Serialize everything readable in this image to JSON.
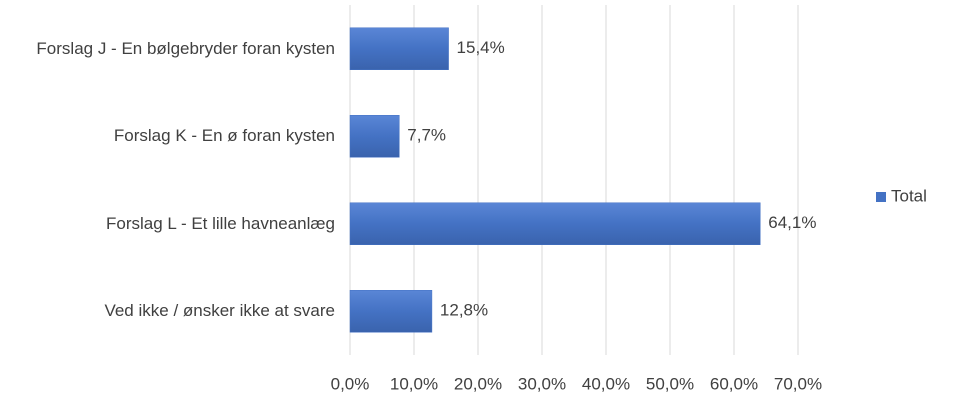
{
  "chart_data": {
    "type": "bar",
    "orientation": "horizontal",
    "categories": [
      "Forslag J - En bølgebryder foran kysten",
      "Forslag K - En ø foran kysten",
      "Forslag L - Et lille havneanlæg",
      "Ved ikke / ønsker ikke at svare"
    ],
    "series": [
      {
        "name": "Total",
        "color": "#4472c4",
        "values": [
          15.4,
          7.7,
          64.1,
          12.8
        ],
        "value_labels": [
          "15,4%",
          "7,7%",
          "64,1%",
          "12,8%"
        ]
      }
    ],
    "xlim": [
      0,
      70
    ],
    "xticks": [
      {
        "value": 0,
        "label": "0,0%"
      },
      {
        "value": 10,
        "label": "10,0%"
      },
      {
        "value": 20,
        "label": "20,0%"
      },
      {
        "value": 30,
        "label": "30,0%"
      },
      {
        "value": 40,
        "label": "40,0%"
      },
      {
        "value": 50,
        "label": "50,0%"
      },
      {
        "value": 60,
        "label": "60,0%"
      },
      {
        "value": 70,
        "label": "70,0%"
      }
    ],
    "grid": true,
    "legend": "right"
  }
}
